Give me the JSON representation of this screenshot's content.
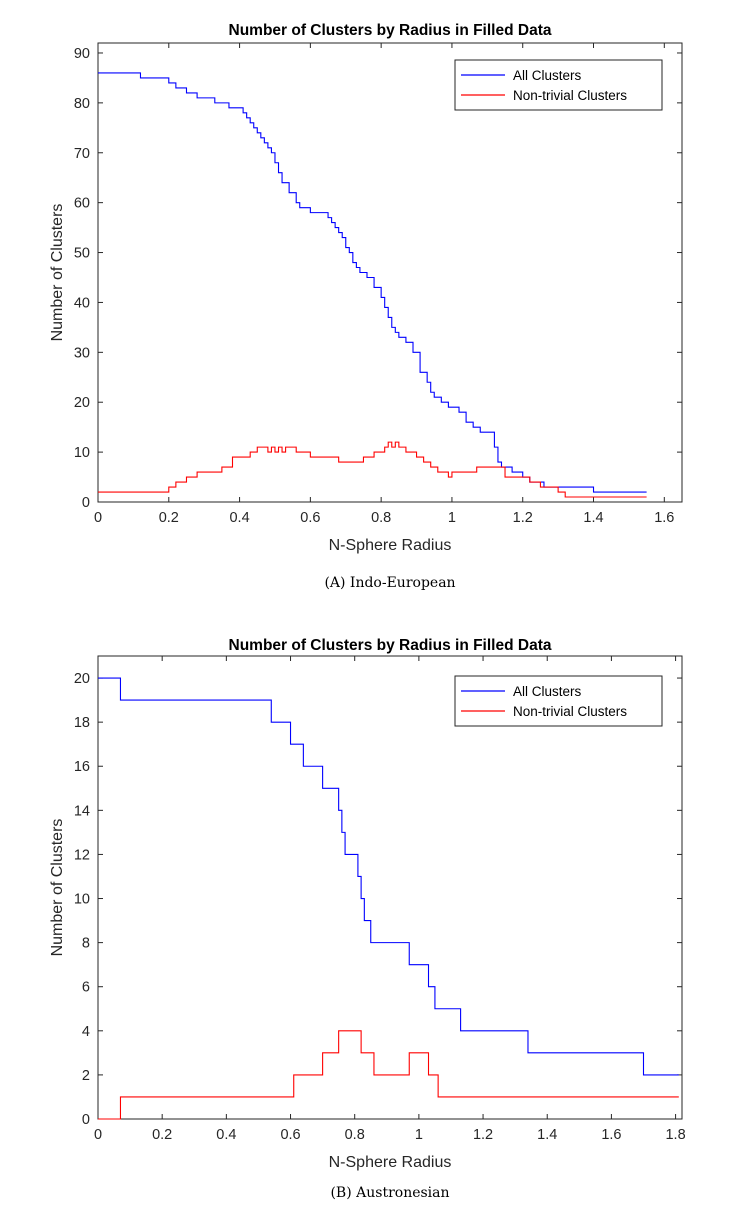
{
  "chart_data": [
    {
      "type": "line",
      "step": "post",
      "title": "Number of Clusters by Radius in Filled Data",
      "xlabel": "N-Sphere Radius",
      "ylabel": "Number of Clusters",
      "xlim": [
        0,
        1.65
      ],
      "ylim": [
        0,
        92
      ],
      "xticks": [
        0,
        0.2,
        0.4,
        0.6,
        0.8,
        1,
        1.2,
        1.4,
        1.6
      ],
      "xtick_labels": [
        "0",
        "0.2",
        "0.4",
        "0.6",
        "0.8",
        "1",
        "1.2",
        "1.4",
        "1.6"
      ],
      "yticks": [
        0,
        10,
        20,
        30,
        40,
        50,
        60,
        70,
        80,
        90
      ],
      "ytick_labels": [
        "0",
        "10",
        "20",
        "30",
        "40",
        "50",
        "60",
        "70",
        "80",
        "90"
      ],
      "legend": "top-right",
      "caption": "(A) Indo-European",
      "series": [
        {
          "name": "All Clusters",
          "color": "#0000ff",
          "x": [
            0,
            0.12,
            0.2,
            0.22,
            0.25,
            0.28,
            0.33,
            0.37,
            0.41,
            0.42,
            0.43,
            0.44,
            0.45,
            0.46,
            0.47,
            0.48,
            0.49,
            0.5,
            0.51,
            0.52,
            0.54,
            0.56,
            0.57,
            0.58,
            0.6,
            0.65,
            0.66,
            0.67,
            0.68,
            0.69,
            0.7,
            0.71,
            0.72,
            0.73,
            0.74,
            0.75,
            0.76,
            0.78,
            0.8,
            0.81,
            0.82,
            0.83,
            0.84,
            0.85,
            0.87,
            0.89,
            0.91,
            0.93,
            0.94,
            0.95,
            0.97,
            0.99,
            1.02,
            1.04,
            1.06,
            1.08,
            1.12,
            1.13,
            1.14,
            1.17,
            1.2,
            1.22,
            1.26,
            1.28,
            1.32,
            1.4,
            1.55
          ],
          "y": [
            86,
            85,
            84,
            83,
            82,
            81,
            80,
            79,
            78,
            77,
            76,
            75,
            74,
            73,
            72,
            71,
            70,
            68,
            66,
            64,
            62,
            60,
            59,
            59,
            58,
            57,
            56,
            55,
            54,
            53,
            51,
            50,
            48,
            47,
            46,
            46,
            45,
            43,
            41,
            39,
            37,
            35,
            34,
            33,
            32,
            30,
            26,
            24,
            22,
            21,
            20,
            19,
            18,
            16,
            15,
            14,
            11,
            8,
            7,
            6,
            5,
            4,
            3,
            3,
            3,
            2,
            2
          ]
        },
        {
          "name": "Non-trivial Clusters",
          "color": "#ff0000",
          "x": [
            0,
            0.2,
            0.22,
            0.25,
            0.28,
            0.35,
            0.38,
            0.43,
            0.45,
            0.48,
            0.49,
            0.5,
            0.51,
            0.52,
            0.53,
            0.54,
            0.56,
            0.6,
            0.68,
            0.75,
            0.78,
            0.81,
            0.82,
            0.83,
            0.84,
            0.85,
            0.86,
            0.87,
            0.9,
            0.92,
            0.94,
            0.96,
            0.98,
            0.99,
            1.0,
            1.07,
            1.15,
            1.22,
            1.25,
            1.3,
            1.32,
            1.55
          ],
          "y": [
            2,
            3,
            4,
            5,
            6,
            7,
            9,
            10,
            11,
            10,
            11,
            10,
            11,
            10,
            11,
            11,
            10,
            9,
            8,
            9,
            10,
            11,
            12,
            11,
            12,
            11,
            11,
            10,
            9,
            8,
            7,
            6,
            6,
            5,
            6,
            7,
            5,
            4,
            3,
            2,
            1,
            1
          ]
        }
      ]
    },
    {
      "type": "line",
      "step": "post",
      "title": "Number of Clusters by Radius in Filled Data",
      "xlabel": "N-Sphere Radius",
      "ylabel": "Number of Clusters",
      "xlim": [
        0,
        1.82
      ],
      "ylim": [
        0,
        21
      ],
      "xticks": [
        0,
        0.2,
        0.4,
        0.6,
        0.8,
        1,
        1.2,
        1.4,
        1.6,
        1.8
      ],
      "xtick_labels": [
        "0",
        "0.2",
        "0.4",
        "0.6",
        "0.8",
        "1",
        "1.2",
        "1.4",
        "1.6",
        "1.8"
      ],
      "yticks": [
        0,
        2,
        4,
        6,
        8,
        10,
        12,
        14,
        16,
        18,
        20
      ],
      "ytick_labels": [
        "0",
        "2",
        "4",
        "6",
        "8",
        "10",
        "12",
        "14",
        "16",
        "18",
        "20"
      ],
      "legend": "top-right",
      "caption": "(B) Austronesian",
      "series": [
        {
          "name": "All Clusters",
          "color": "#0000ff",
          "x": [
            0,
            0.07,
            0.54,
            0.6,
            0.64,
            0.7,
            0.75,
            0.76,
            0.77,
            0.8,
            0.81,
            0.82,
            0.83,
            0.85,
            0.97,
            1.03,
            1.05,
            1.13,
            1.34,
            1.7,
            1.81
          ],
          "y": [
            20,
            19,
            18,
            17,
            16,
            15,
            14,
            13,
            12,
            12,
            11,
            10,
            9,
            8,
            7,
            6,
            5,
            4,
            3,
            2,
            2
          ]
        },
        {
          "name": "Non-trivial Clusters",
          "color": "#ff0000",
          "x": [
            0,
            0.07,
            0.61,
            0.7,
            0.75,
            0.82,
            0.86,
            0.97,
            1.03,
            1.06,
            1.81
          ],
          "y": [
            0,
            1,
            2,
            3,
            4,
            3,
            2,
            3,
            2,
            1,
            1
          ]
        }
      ]
    }
  ]
}
